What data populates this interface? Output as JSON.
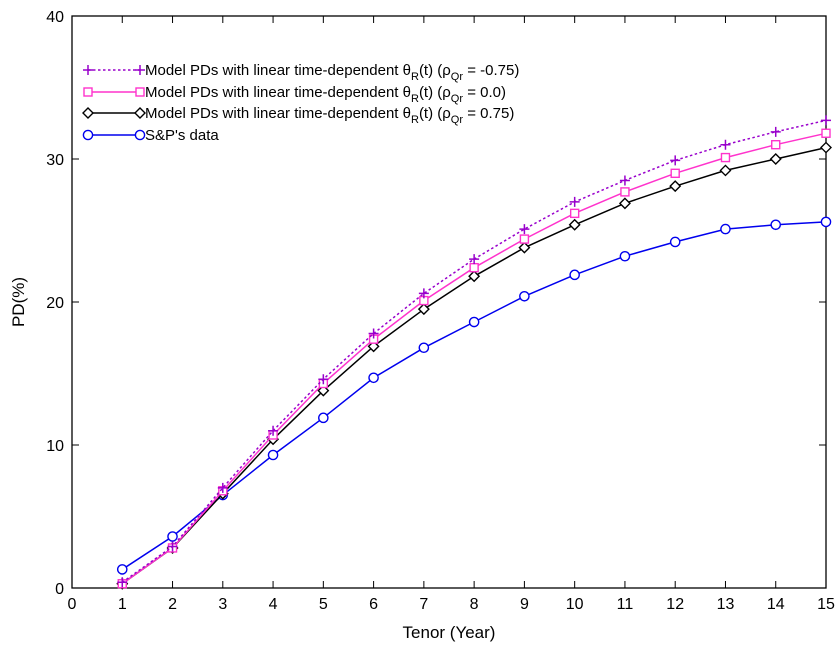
{
  "chart_data": {
    "type": "line",
    "xlabel": "Tenor (Year)",
    "ylabel": "PD(%)",
    "xlim": [
      0,
      15
    ],
    "ylim": [
      0,
      40
    ],
    "xticks": [
      "0",
      "1",
      "2",
      "3",
      "4",
      "5",
      "6",
      "7",
      "8",
      "9",
      "10",
      "11",
      "12",
      "13",
      "14",
      "15"
    ],
    "yticks": [
      "0",
      "10",
      "20",
      "30",
      "40"
    ],
    "grid": false,
    "legend_position": "top-left",
    "x": [
      1,
      2,
      3,
      4,
      5,
      6,
      7,
      8,
      9,
      10,
      11,
      12,
      13,
      14,
      15
    ],
    "series": [
      {
        "name": "Model PDs with linear time-dependent θR(t) (ρQr = -0.75)",
        "legend_parts": {
          "prefix": "Model PDs with linear time-dependent θ",
          "sub1": "R",
          "mid": "(t) (ρ",
          "sub2": "Qr",
          "suffix": " = -0.75)"
        },
        "color": "#9900cc",
        "marker": "plus",
        "dash": "dotted",
        "values": [
          0.4,
          2.9,
          7.0,
          11.0,
          14.6,
          17.8,
          20.6,
          23.0,
          25.1,
          27.0,
          28.5,
          29.9,
          31.0,
          31.9,
          32.7
        ]
      },
      {
        "name": "Model PDs with linear time-dependent θR(t) (ρQr = 0.0)",
        "legend_parts": {
          "prefix": "Model PDs with linear time-dependent θ",
          "sub1": "R",
          "mid": "(t) (ρ",
          "sub2": "Qr",
          "suffix": " = 0.0)"
        },
        "color": "#ff33cc",
        "marker": "square",
        "dash": "solid",
        "values": [
          0.3,
          2.8,
          6.8,
          10.7,
          14.3,
          17.4,
          20.1,
          22.4,
          24.4,
          26.2,
          27.7,
          29.0,
          30.1,
          31.0,
          31.8
        ]
      },
      {
        "name": "Model PDs with linear time-dependent θR(t) (ρQr = 0.75)",
        "legend_parts": {
          "prefix": "Model PDs with linear time-dependent θ",
          "sub1": "R",
          "mid": "(t) (ρ",
          "sub2": "Qr",
          "suffix": " = 0.75)"
        },
        "color": "#000000",
        "marker": "diamond",
        "dash": "solid",
        "values": [
          0.3,
          2.8,
          6.6,
          10.4,
          13.8,
          16.9,
          19.5,
          21.8,
          23.8,
          25.4,
          26.9,
          28.1,
          29.2,
          30.0,
          30.8
        ]
      },
      {
        "name": "S&P's data",
        "legend_parts": {
          "prefix": "S&P's data",
          "sub1": "",
          "mid": "",
          "sub2": "",
          "suffix": ""
        },
        "color": "#0000ee",
        "marker": "circle",
        "dash": "solid",
        "values": [
          1.3,
          3.6,
          6.5,
          9.3,
          11.9,
          14.7,
          16.8,
          18.6,
          20.4,
          21.9,
          23.2,
          24.2,
          25.1,
          25.4,
          25.6
        ]
      }
    ]
  }
}
